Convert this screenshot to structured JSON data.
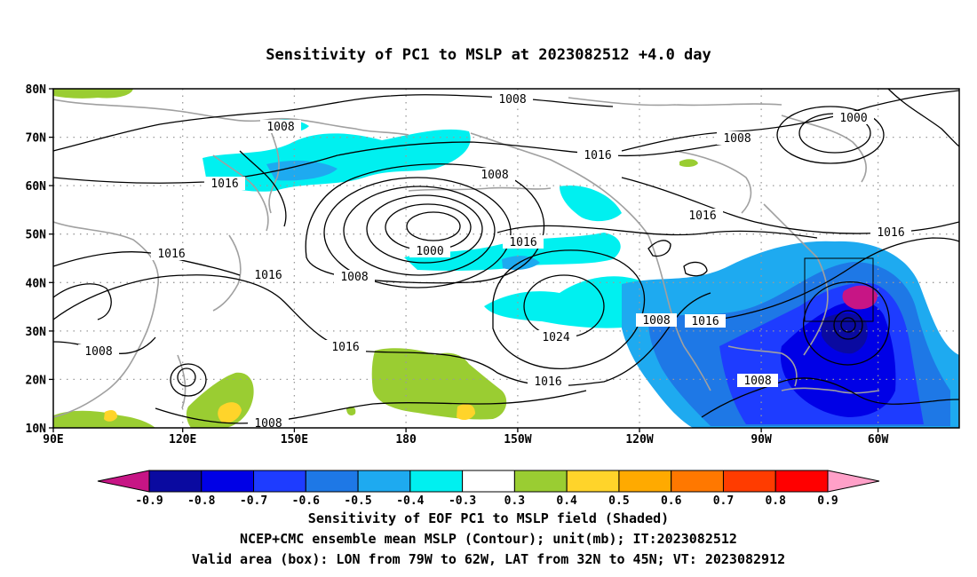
{
  "title": "Sensitivity of PC1 to MSLP at 2023082512 +4.0 day",
  "map": {
    "lon_range": [
      "90E",
      "40W"
    ],
    "lat_range": [
      "10N",
      "80N"
    ],
    "lat_ticks": [
      "80N",
      "70N",
      "60N",
      "50N",
      "40N",
      "30N",
      "20N",
      "10N"
    ],
    "lon_ticks": [
      "90E",
      "120E",
      "150E",
      "180",
      "150W",
      "120W",
      "90W",
      "60W"
    ],
    "grid": "dotted",
    "coastline_color": "#a0a0a0",
    "contour_color": "#000000",
    "contour_labels": [
      {
        "text": "1008",
        "key": "c1"
      },
      {
        "text": "1008",
        "key": "c2"
      },
      {
        "text": "1000",
        "key": "c3"
      },
      {
        "text": "1016",
        "key": "c4"
      },
      {
        "text": "1008",
        "key": "c5"
      },
      {
        "text": "1016",
        "key": "c6"
      },
      {
        "text": "1008",
        "key": "c7"
      },
      {
        "text": "1016",
        "key": "c8"
      },
      {
        "text": "1000",
        "key": "c9"
      },
      {
        "text": "1016",
        "key": "c10"
      },
      {
        "text": "1016",
        "key": "c11"
      },
      {
        "text": "1008",
        "key": "c12"
      },
      {
        "text": "1016",
        "key": "c13"
      },
      {
        "text": "1016",
        "key": "c14"
      },
      {
        "text": "1008",
        "key": "c15"
      },
      {
        "text": "1016",
        "key": "c16"
      },
      {
        "text": "1024",
        "key": "c17"
      },
      {
        "text": "1016",
        "key": "c18"
      },
      {
        "text": "1008",
        "key": "c19"
      },
      {
        "text": "1008",
        "key": "c20"
      },
      {
        "text": "1008",
        "key": "c21"
      },
      {
        "text": "1016",
        "key": "c22"
      }
    ],
    "valid_box": {
      "lon": [
        "79W",
        "62W"
      ],
      "lat": [
        "32N",
        "45N"
      ]
    }
  },
  "colorbar": {
    "labels": [
      "-0.9",
      "-0.8",
      "-0.7",
      "-0.6",
      "-0.5",
      "-0.4",
      "-0.3",
      "0.3",
      "0.4",
      "0.5",
      "0.6",
      "0.7",
      "0.8",
      "0.9"
    ],
    "colors": [
      "#c71585",
      "#0a0aa0",
      "#0000e6",
      "#1e3cff",
      "#1e78e6",
      "#1eaaf0",
      "#00f0f0",
      "#ffffff",
      "#9acd32",
      "#ffd42a",
      "#ffaa00",
      "#ff7800",
      "#ff3c00",
      "#ff0000",
      "#ffa0c8"
    ]
  },
  "footer": {
    "line1": "Sensitivity of EOF PC1 to MSLP field (Shaded)",
    "line2": "NCEP+CMC ensemble mean MSLP (Contour); unit(mb); IT:2023082512",
    "line3": "Valid area (box): LON from 79W to 62W, LAT from 32N to 45N; VT: 2023082912"
  }
}
